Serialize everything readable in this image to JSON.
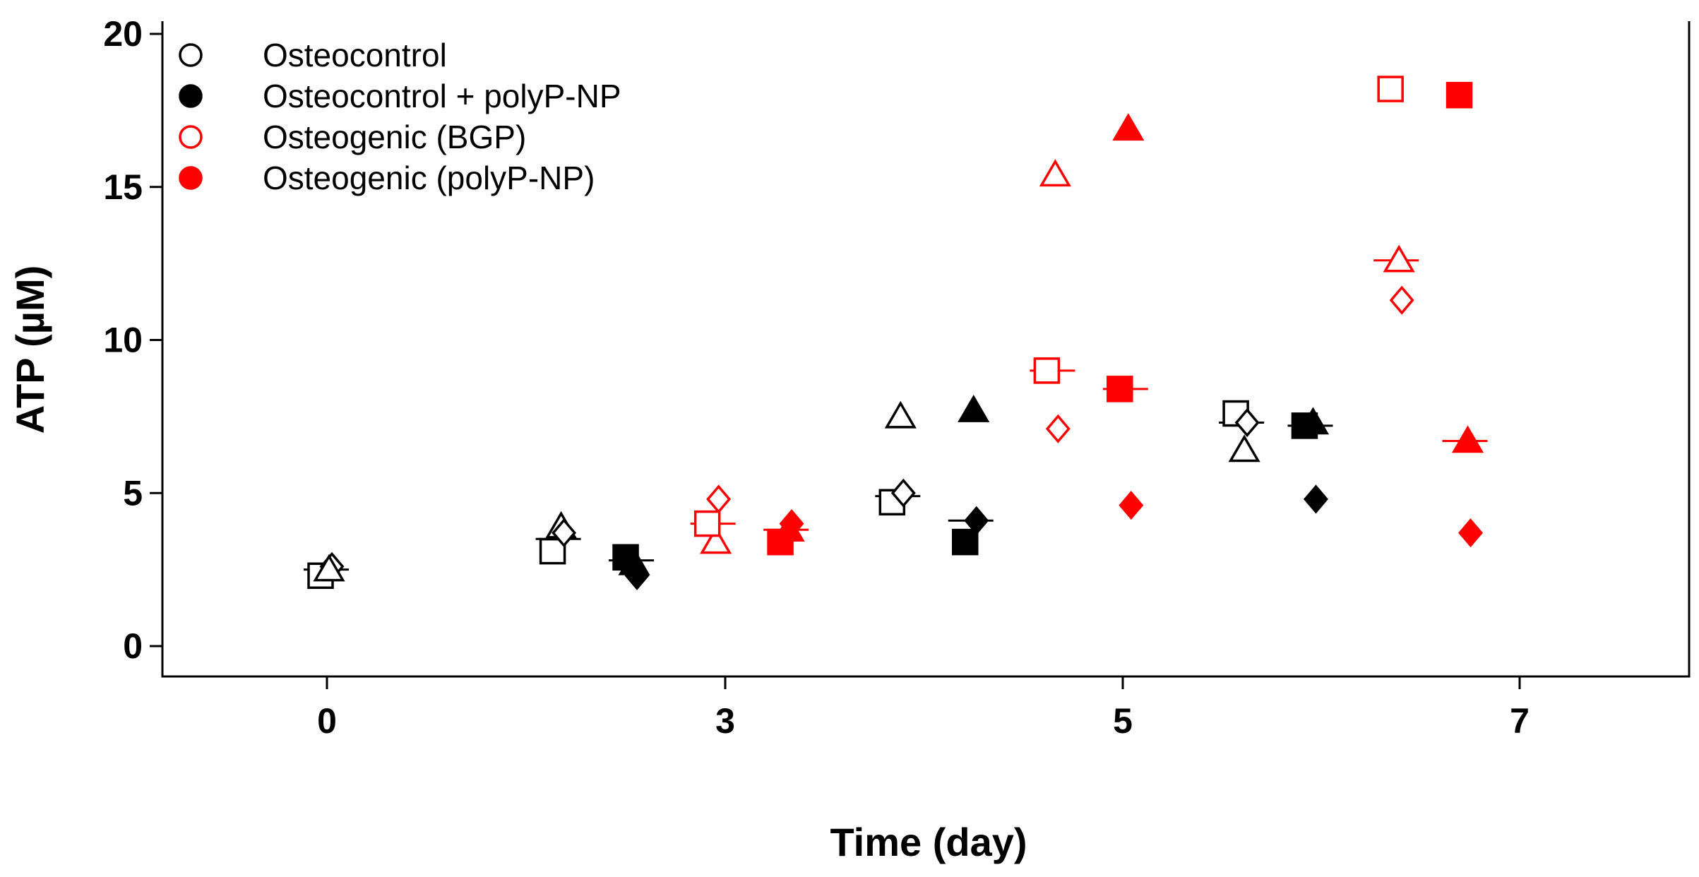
{
  "chart_data": {
    "type": "scatter",
    "xlabel": "Time (day)",
    "ylabel": "ATP (µM)",
    "ylim": [
      -1,
      20
    ],
    "yticks": [
      0,
      5,
      10,
      15,
      20
    ],
    "categories": [
      "0",
      "3",
      "5",
      "7"
    ],
    "legend_position": "top-left",
    "colors": {
      "black": "#000000",
      "red": "#ff0000"
    },
    "legend": [
      {
        "label": "Osteocontrol",
        "color": "#000000",
        "filled": false
      },
      {
        "label": "Osteocontrol + polyP-NP",
        "color": "#000000",
        "filled": true
      },
      {
        "label": "Osteogenic (BGP)",
        "color": "#ff0000",
        "filled": false
      },
      {
        "label": "Osteogenic (polyP-NP)",
        "color": "#ff0000",
        "filled": true
      }
    ],
    "series": [
      {
        "name": "Osteocontrol",
        "color": "#000000",
        "filled": false,
        "groups": [
          {
            "day": 0,
            "x": 0.0,
            "mean": 2.5,
            "points": [
              {
                "shape": "square",
                "y": 2.3
              },
              {
                "shape": "diamond",
                "y": 2.6
              },
              {
                "shape": "triangle",
                "y": 2.5
              }
            ]
          },
          {
            "day": 3,
            "x": 2.7,
            "mean": 3.5,
            "points": [
              {
                "shape": "square",
                "y": 3.1
              },
              {
                "shape": "triangle",
                "y": 3.9
              },
              {
                "shape": "diamond",
                "y": 3.7
              }
            ]
          },
          {
            "day": 5,
            "x": 6.65,
            "mean": 4.9,
            "points": [
              {
                "shape": "square",
                "y": 4.7
              },
              {
                "shape": "triangle",
                "y": 7.5
              },
              {
                "shape": "diamond",
                "y": 5.0
              }
            ]
          },
          {
            "day": 7,
            "x": 10.65,
            "mean": 7.3,
            "points": [
              {
                "shape": "square",
                "y": 7.6
              },
              {
                "shape": "triangle",
                "y": 6.4
              },
              {
                "shape": "diamond",
                "y": 7.3
              }
            ]
          }
        ]
      },
      {
        "name": "Osteocontrol + polyP-NP",
        "color": "#000000",
        "filled": true,
        "groups": [
          {
            "day": 3,
            "x": 3.55,
            "mean": 2.8,
            "points": [
              {
                "shape": "diamond",
                "y": 2.3
              },
              {
                "shape": "triangle",
                "y": 2.7
              },
              {
                "shape": "square",
                "y": 2.9
              }
            ]
          },
          {
            "day": 5,
            "x": 7.5,
            "mean": 4.1,
            "points": [
              {
                "shape": "square",
                "y": 3.4
              },
              {
                "shape": "triangle",
                "y": 7.7
              },
              {
                "shape": "diamond",
                "y": 4.1
              }
            ]
          },
          {
            "day": 7,
            "x": 11.45,
            "mean": 7.2,
            "points": [
              {
                "shape": "square",
                "y": 7.2
              },
              {
                "shape": "triangle",
                "y": 7.3
              },
              {
                "shape": "diamond",
                "y": 4.8
              }
            ]
          }
        ]
      },
      {
        "name": "Osteogenic (BGP)",
        "color": "#ff0000",
        "filled": false,
        "groups": [
          {
            "day": 3,
            "x": 4.5,
            "mean": 4.0,
            "points": [
              {
                "shape": "diamond",
                "y": 4.8
              },
              {
                "shape": "triangle",
                "y": 3.4
              },
              {
                "shape": "square",
                "y": 4.0
              }
            ]
          },
          {
            "day": 5,
            "x": 8.45,
            "mean": 9.0,
            "points": [
              {
                "shape": "triangle",
                "y": 15.4
              },
              {
                "shape": "square",
                "y": 9.0
              },
              {
                "shape": "diamond",
                "y": 7.1
              }
            ]
          },
          {
            "day": 7,
            "x": 12.45,
            "mean": 12.6,
            "points": [
              {
                "shape": "square",
                "y": 18.2
              },
              {
                "shape": "triangle",
                "y": 12.6
              },
              {
                "shape": "diamond",
                "y": 11.3
              }
            ]
          }
        ]
      },
      {
        "name": "Osteogenic (polyP-NP)",
        "color": "#ff0000",
        "filled": true,
        "groups": [
          {
            "day": 3,
            "x": 5.35,
            "mean": 3.8,
            "points": [
              {
                "shape": "square",
                "y": 3.4
              },
              {
                "shape": "triangle",
                "y": 3.8
              },
              {
                "shape": "diamond",
                "y": 4.0
              }
            ]
          },
          {
            "day": 5,
            "x": 9.3,
            "mean": 8.4,
            "points": [
              {
                "shape": "triangle",
                "y": 16.9
              },
              {
                "shape": "square",
                "y": 8.4
              },
              {
                "shape": "diamond",
                "y": 4.6
              }
            ]
          },
          {
            "day": 7,
            "x": 13.25,
            "mean": 6.7,
            "points": [
              {
                "shape": "square",
                "y": 18.0
              },
              {
                "shape": "triangle",
                "y": 6.7
              },
              {
                "shape": "diamond",
                "y": 3.7
              }
            ]
          }
        ]
      }
    ]
  }
}
